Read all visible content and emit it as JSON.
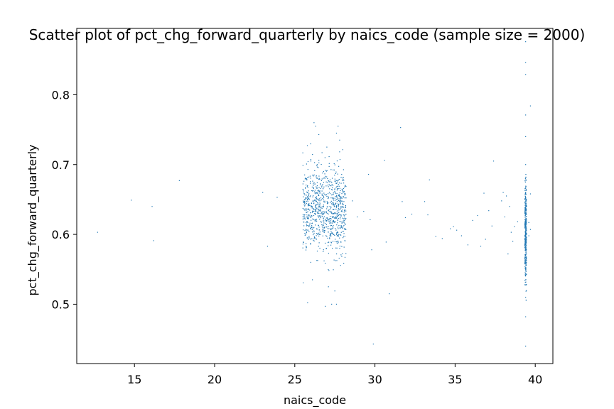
{
  "chart_data": {
    "type": "scatter",
    "title": "Scatter plot of pct_chg_forward_quarterly by naics_code (sample size = 2000)",
    "xlabel": "naics_code",
    "ylabel": "pct_chg_forward_quarterly",
    "xlim": [
      11.4,
      41.1
    ],
    "ylim": [
      0.415,
      0.895
    ],
    "xticks": [
      15,
      20,
      25,
      30,
      35,
      40
    ],
    "yticks": [
      0.5,
      0.6,
      0.7,
      0.8
    ],
    "xtick_labels": [
      "15",
      "20",
      "25",
      "30",
      "35",
      "40"
    ],
    "ytick_labels": [
      "0.5",
      "0.6",
      "0.7",
      "0.8"
    ],
    "grid": false,
    "marker_color": "#1f77b4",
    "series": [
      {
        "x": [
          12.7,
          14.8,
          16.1,
          16.2,
          17.8,
          23.0,
          23.3,
          23.9,
          29.6,
          29.8,
          29.9,
          30.6,
          30.7,
          30.9,
          31.6,
          31.7,
          31.9,
          32.3,
          33.1,
          33.3,
          33.4,
          33.8,
          34.2,
          34.7,
          34.9,
          35.1,
          35.4,
          35.8,
          36.1,
          36.4,
          36.6,
          36.8,
          36.9,
          37.1,
          37.3,
          37.4,
          39.4,
          39.4,
          39.4,
          39.4,
          39.4,
          39.4,
          39.4,
          39.4,
          39.4,
          39.4,
          39.7,
          39.7,
          39.6,
          39.6,
          39.7,
          38.1,
          38.2,
          38.4,
          38.5,
          38.7,
          38.9,
          38.3,
          38.6,
          38.0,
          37.9,
          26.2,
          26.3,
          26.5,
          26.7,
          26.1,
          25.8,
          25.6,
          26.9,
          27.1,
          27.3,
          27.5,
          27.7,
          27.6,
          27.8,
          27.9,
          26.4,
          26.8,
          27.0,
          27.2,
          27.4,
          28.6,
          28.9,
          29.3,
          29.7,
          25.9,
          26.0,
          27.6,
          27.8,
          28.1
        ],
        "y": [
          0.603,
          0.649,
          0.64,
          0.591,
          0.677,
          0.66,
          0.583,
          0.653,
          0.686,
          0.578,
          0.443,
          0.706,
          0.589,
          0.515,
          0.753,
          0.647,
          0.624,
          0.629,
          0.647,
          0.628,
          0.678,
          0.597,
          0.594,
          0.608,
          0.611,
          0.606,
          0.598,
          0.585,
          0.62,
          0.627,
          0.583,
          0.659,
          0.593,
          0.634,
          0.612,
          0.705,
          0.876,
          0.846,
          0.829,
          0.771,
          0.74,
          0.7,
          0.55,
          0.51,
          0.482,
          0.44,
          0.784,
          0.658,
          0.617,
          0.598,
          0.607,
          0.625,
          0.655,
          0.64,
          0.603,
          0.611,
          0.618,
          0.572,
          0.59,
          0.66,
          0.648,
          0.76,
          0.755,
          0.743,
          0.717,
          0.535,
          0.502,
          0.628,
          0.497,
          0.525,
          0.5,
          0.519,
          0.755,
          0.745,
          0.58,
          0.61,
          0.7,
          0.69,
          0.725,
          0.67,
          0.62,
          0.648,
          0.625,
          0.633,
          0.621,
          0.595,
          0.56,
          0.5,
          0.735,
          0.62
        ]
      }
    ],
    "dense_clusters": [
      {
        "x_range": [
          25.5,
          28.2
        ],
        "y_center": 0.635,
        "y_spread": 0.05,
        "count": 900
      },
      {
        "x_range": [
          39.35,
          39.45
        ],
        "y_center": 0.6,
        "y_spread": 0.06,
        "count": 380
      }
    ]
  }
}
